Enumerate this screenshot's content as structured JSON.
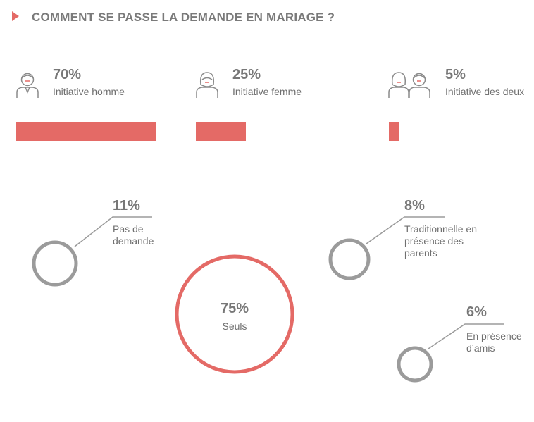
{
  "title": "COMMENT SE PASSE LA DEMANDE EN MARIAGE ?",
  "colors": {
    "accent": "#e46a66",
    "ring": "#9b9b9b",
    "text": "#6f6f6f"
  },
  "chart_data": [
    {
      "type": "bar",
      "categories": [
        "Initiative homme",
        "Initiative femme",
        "Initiative des deux"
      ],
      "values": [
        70,
        25,
        5
      ],
      "value_labels": [
        "70%",
        "25%",
        "5%"
      ],
      "icons": [
        "man-icon",
        "woman-icon",
        "couple-icon"
      ]
    },
    {
      "type": "bubble",
      "items": [
        {
          "value": 11,
          "pct": "11%",
          "label": "Pas de demande"
        },
        {
          "value": 75,
          "pct": "75%",
          "label": "Seuls"
        },
        {
          "value": 8,
          "pct": "8%",
          "label": "Traditionnelle en présence des parents"
        },
        {
          "value": 6,
          "pct": "6%",
          "label": "En présence d’amis"
        }
      ]
    }
  ]
}
